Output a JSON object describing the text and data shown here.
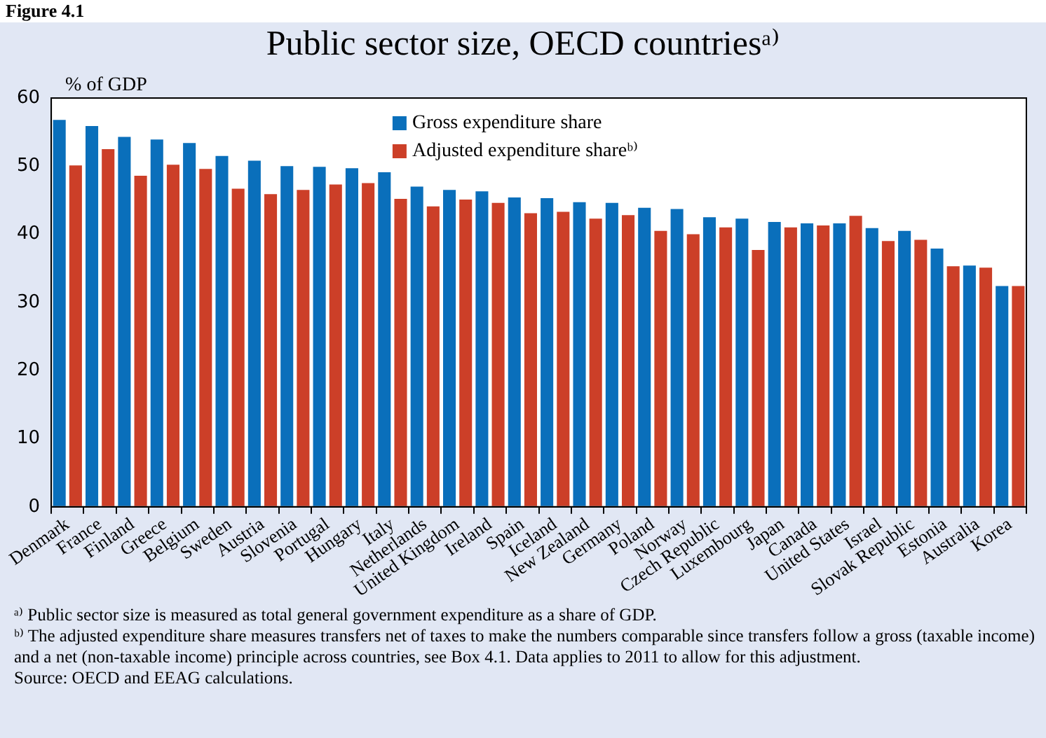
{
  "chart_data": {
    "type": "bar",
    "title": "Public sector size, OECD countriesᵃ⁾",
    "ylabel": "% of GDP",
    "categories": [
      "Denmark",
      "France",
      "Finland",
      "Greece",
      "Belgium",
      "Sweden",
      "Austria",
      "Slovenia",
      "Portugal",
      "Hungary",
      "Italy",
      "Netherlands",
      "United Kingdom",
      "Ireland",
      "Spain",
      "Iceland",
      "New Zealand",
      "Germany",
      "Poland",
      "Norway",
      "Czech Republic",
      "Luxembourg",
      "Japan",
      "Canada",
      "United States",
      "Israel",
      "Slovak Republic",
      "Estonia",
      "Australia",
      "Korea"
    ],
    "series": [
      {
        "name": "Gross expenditure share",
        "color": "#0a6fbb",
        "values": [
          56.8,
          55.9,
          54.3,
          53.9,
          53.4,
          51.5,
          50.8,
          50.0,
          49.9,
          49.7,
          49.1,
          47.0,
          46.5,
          46.3,
          45.4,
          45.3,
          44.7,
          44.6,
          43.9,
          43.7,
          42.5,
          42.3,
          41.8,
          41.6,
          41.6,
          40.9,
          40.5,
          37.9,
          35.4,
          32.4
        ]
      },
      {
        "name": "Adjusted expenditure shareᵇ⁾",
        "color": "#cc3f28",
        "values": [
          50.1,
          52.5,
          48.6,
          50.2,
          49.6,
          46.7,
          45.9,
          46.5,
          47.3,
          47.5,
          45.2,
          44.1,
          45.1,
          44.6,
          43.1,
          43.3,
          42.3,
          42.8,
          40.5,
          40.0,
          41.0,
          37.7,
          41.0,
          41.3,
          42.7,
          39.0,
          39.2,
          35.3,
          35.1,
          32.4
        ]
      }
    ],
    "ylim": [
      0,
      60
    ],
    "yticks": [
      0,
      10,
      20,
      30,
      40,
      50,
      60
    ],
    "grid": false,
    "legend": "top",
    "annotations": [
      "Figure 4.1",
      "ᵃ⁾ Public sector size is measured as total general government expenditure as a share of GDP.",
      "ᵇ⁾ The adjusted expenditure share measures transfers net of taxes to make the numbers comparable since transfers follow a gross (taxable income) and a net (non-taxable income) principle across countries, see Box 4.1. Data applies to 2011 to allow for this adjustment.",
      "Source: OECD and EEAG calculations."
    ]
  }
}
